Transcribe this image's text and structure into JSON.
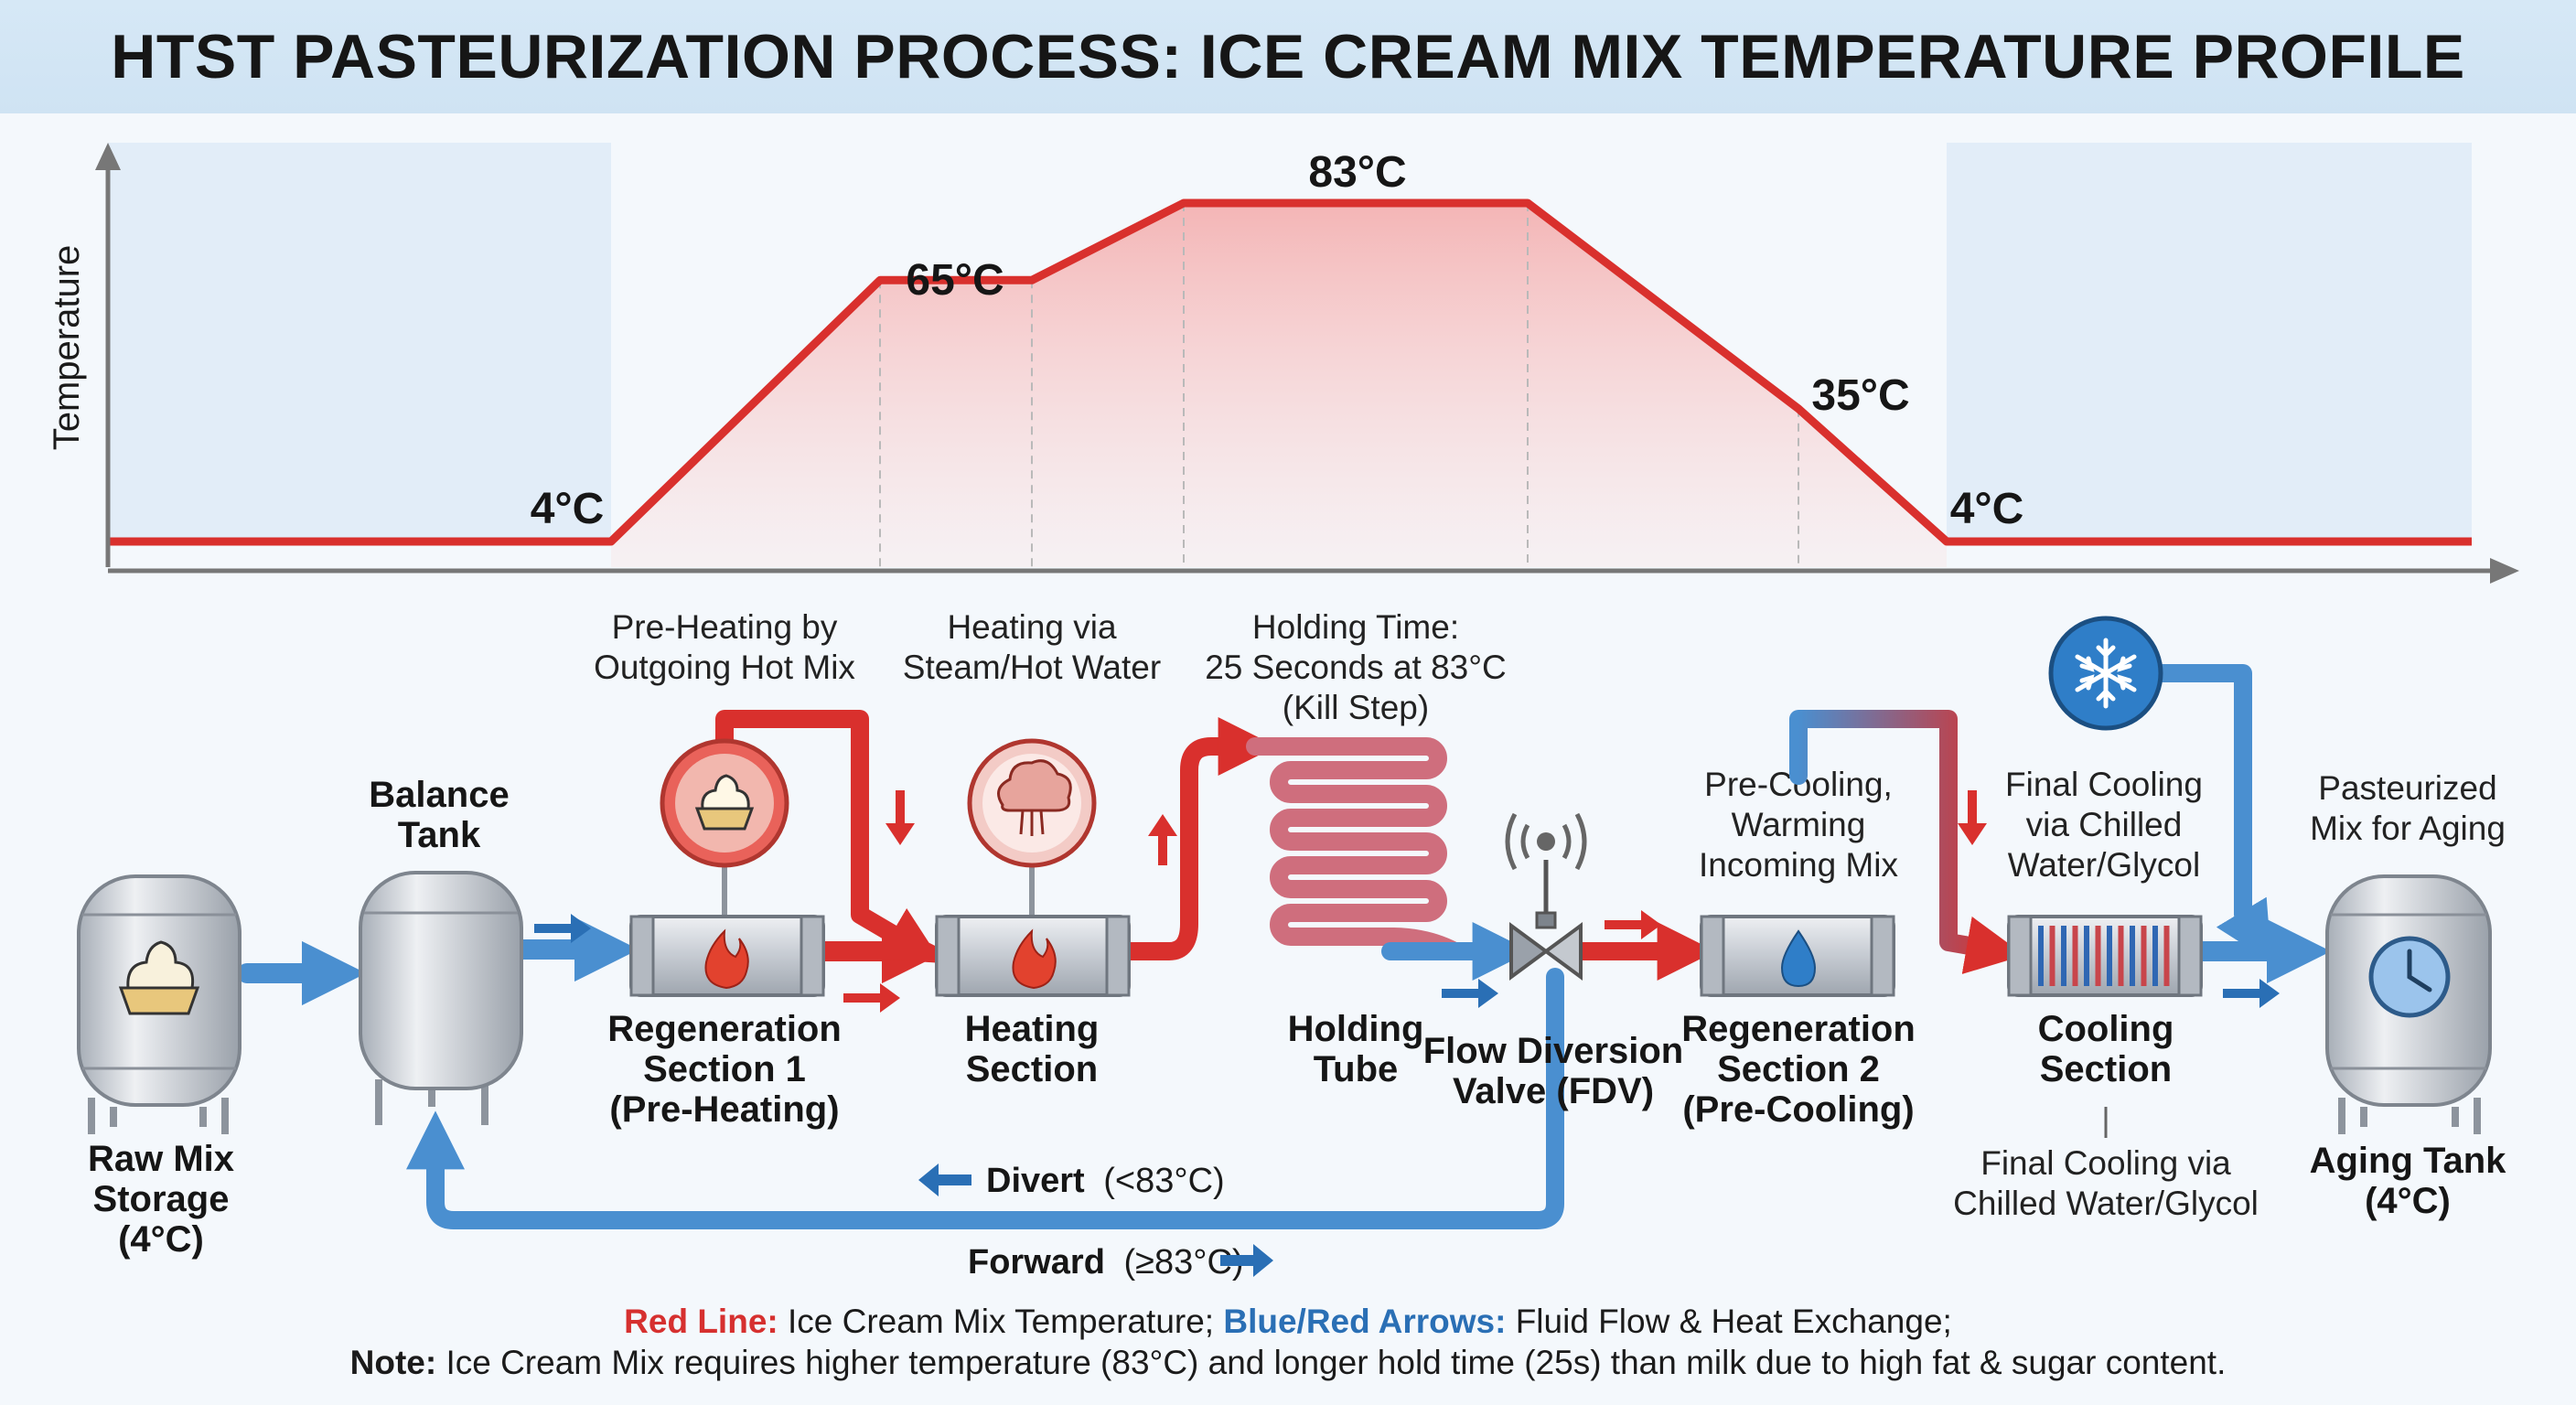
{
  "title": "HTST PASTEURIZATION PROCESS: ICE CREAM MIX TEMPERATURE PROFILE",
  "profile_chart": {
    "ylabel": "Temperature",
    "points_celsius": [
      4,
      4,
      65,
      65,
      83,
      83,
      35,
      4,
      4
    ],
    "labels": [
      "4°C",
      "65°C",
      "83°C",
      "35°C",
      "4°C"
    ]
  },
  "stage_captions": {
    "preheating": [
      "Pre-Heating by",
      "Outgoing Hot Mix"
    ],
    "heating": [
      "Heating via",
      "Steam/Hot Water"
    ],
    "holding": [
      "Holding Time:",
      "25 Seconds at 83°C",
      "(Kill Step)"
    ],
    "precooling": [
      "Pre-Cooling,",
      "Warming",
      "Incoming Mix"
    ],
    "final_cooling": [
      "Final Cooling",
      "via Chilled",
      "Water/Glycol"
    ],
    "pasteurized": [
      "Pasteurized",
      "Mix for Aging"
    ]
  },
  "equipment": {
    "raw_mix": [
      "Raw Mix",
      "Storage",
      "(4°C)"
    ],
    "balance_tank": [
      "Balance",
      "Tank"
    ],
    "regen1": [
      "Regeneration",
      "Section 1",
      "(Pre-Heating)"
    ],
    "heating": [
      "Heating",
      "Section"
    ],
    "holding_tube": [
      "Holding",
      "Tube"
    ],
    "fdv": [
      "Flow Diversion",
      "Valve (FDV)"
    ],
    "regen2": [
      "Regeneration",
      "Section 2",
      "(Pre-Cooling)"
    ],
    "cooling": [
      "Cooling",
      "Section"
    ],
    "cooling_note": [
      "Final Cooling via",
      "Chilled Water/Glycol"
    ],
    "aging_tank": [
      "Aging Tank",
      "(4°C)"
    ]
  },
  "flow": {
    "divert": "Divert",
    "divert_condition": "(<83°C)",
    "forward": "Forward",
    "forward_condition": "(≥83°C)"
  },
  "footer": {
    "red_line_label": "Red Line:",
    "red_line_text": " Ice Cream Mix Temperature; ",
    "arrows_label": "Blue/Red Arrows:",
    "arrows_text": " Fluid Flow & Heat Exchange;",
    "note_label": "Note:",
    "note_text": " Ice Cream Mix requires higher temperature (83°C) and longer hold time (25s) than milk due to high fat & sugar content."
  },
  "colors": {
    "hot": "#d9302d",
    "cold": "#4a8fd0",
    "metal": "#c7ccd3",
    "panel": "#e2edf8"
  },
  "icons": [
    "ice-cream-icon",
    "flame-icon",
    "steam-cloud-icon",
    "snowflake-icon",
    "water-drop-icon",
    "clock-icon",
    "antenna-icon"
  ]
}
